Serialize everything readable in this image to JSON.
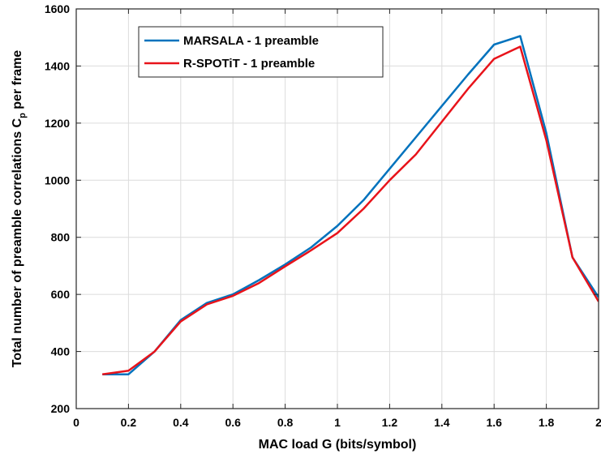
{
  "chart_data": {
    "type": "line",
    "title": "",
    "xlabel": "MAC load G (bits/symbol)",
    "ylabel_main": "Total number of preamble correlations C",
    "ylabel_sub": "p",
    "ylabel_tail": " per frame",
    "xlim": [
      0,
      2
    ],
    "ylim": [
      200,
      1600
    ],
    "x_ticks": [
      0,
      0.2,
      0.4,
      0.6,
      0.8,
      1,
      1.2,
      1.4,
      1.6,
      1.8,
      2
    ],
    "x_tick_labels": [
      "0",
      "0.2",
      "0.4",
      "0.6",
      "0.8",
      "1",
      "1.2",
      "1.4",
      "1.6",
      "1.8",
      "2"
    ],
    "y_ticks": [
      200,
      400,
      600,
      800,
      1000,
      1200,
      1400,
      1600
    ],
    "y_tick_labels": [
      "200",
      "400",
      "600",
      "800",
      "1000",
      "1200",
      "1400",
      "1600"
    ],
    "grid": true,
    "legend_position": "top-left",
    "series": [
      {
        "name": "MARSALA - 1 preamble",
        "color": "#0072BD",
        "x": [
          0.1,
          0.2,
          0.3,
          0.4,
          0.5,
          0.6,
          0.7,
          0.8,
          0.9,
          1.0,
          1.1,
          1.2,
          1.3,
          1.4,
          1.5,
          1.6,
          1.7,
          1.8,
          1.9,
          2.0
        ],
        "values": [
          320,
          320,
          400,
          510,
          570,
          600,
          650,
          705,
          765,
          840,
          930,
          1040,
          1150,
          1260,
          1370,
          1475,
          1505,
          1165,
          730,
          590
        ]
      },
      {
        "name": "R-SPOTiT - 1 preamble",
        "color": "#E8131A",
        "x": [
          0.1,
          0.2,
          0.3,
          0.4,
          0.5,
          0.6,
          0.7,
          0.8,
          0.9,
          1.0,
          1.1,
          1.2,
          1.3,
          1.4,
          1.5,
          1.6,
          1.7,
          1.8,
          1.9,
          2.0
        ],
        "values": [
          320,
          333,
          400,
          505,
          565,
          595,
          640,
          698,
          755,
          815,
          900,
          1000,
          1090,
          1205,
          1320,
          1425,
          1468,
          1140,
          730,
          575
        ]
      }
    ]
  }
}
